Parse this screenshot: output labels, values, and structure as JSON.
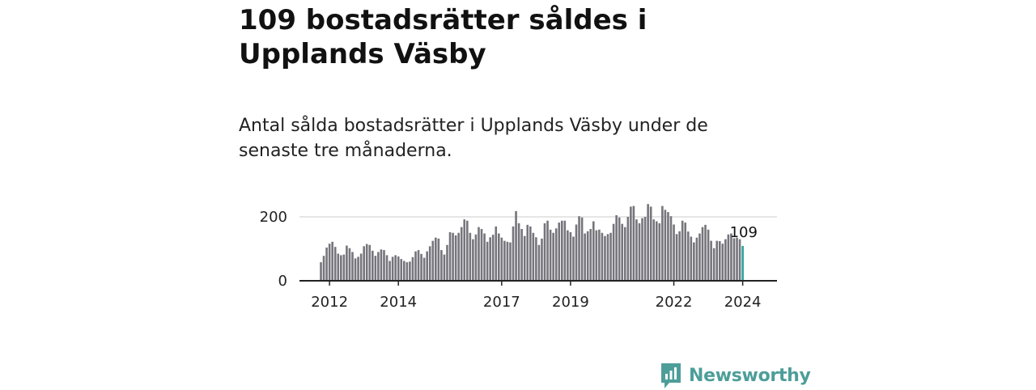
{
  "header": {
    "title": "109 bostadsrätter såldes i Upplands Väsby",
    "subtitle": "Antal sålda bostadsrätter i Upplands Väsby under de senaste tre månaderna."
  },
  "brand": {
    "name": "Newsworthy",
    "color": "#4d9e99"
  },
  "colors": {
    "bar": "#76757c",
    "highlight": "#2aa39a",
    "axis": "#222222",
    "grid": "#d6d6d6"
  },
  "chart_data": {
    "type": "bar",
    "x_start": "2011-10",
    "x_unit": "month",
    "y_ticks": [
      0,
      200
    ],
    "x_tick_labels": [
      "2012",
      "2014",
      "2017",
      "2019",
      "2022",
      "2024"
    ],
    "ylim": [
      0,
      260
    ],
    "highlight_label": "109",
    "values": [
      58,
      78,
      104,
      116,
      122,
      106,
      85,
      80,
      82,
      110,
      102,
      90,
      70,
      75,
      85,
      108,
      115,
      112,
      94,
      78,
      90,
      98,
      96,
      80,
      62,
      75,
      80,
      76,
      68,
      62,
      58,
      60,
      74,
      92,
      96,
      84,
      72,
      92,
      108,
      125,
      135,
      132,
      96,
      82,
      112,
      152,
      150,
      142,
      150,
      168,
      192,
      188,
      150,
      130,
      145,
      168,
      162,
      148,
      122,
      136,
      144,
      170,
      148,
      135,
      125,
      122,
      120,
      170,
      218,
      180,
      162,
      140,
      175,
      170,
      150,
      136,
      112,
      132,
      180,
      188,
      160,
      150,
      164,
      182,
      188,
      188,
      158,
      152,
      138,
      176,
      202,
      198,
      148,
      155,
      162,
      186,
      158,
      160,
      150,
      140,
      146,
      150,
      178,
      205,
      198,
      178,
      168,
      200,
      232,
      234,
      192,
      180,
      196,
      200,
      240,
      232,
      192,
      186,
      180,
      234,
      222,
      215,
      202,
      176,
      146,
      155,
      188,
      182,
      154,
      138,
      120,
      135,
      148,
      168,
      175,
      160,
      125,
      102,
      125,
      124,
      116,
      130,
      145,
      148,
      133,
      135,
      130,
      109
    ]
  }
}
